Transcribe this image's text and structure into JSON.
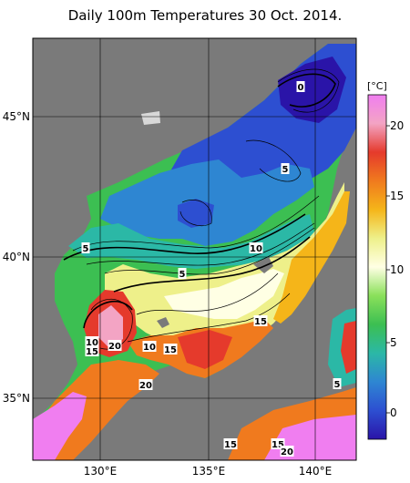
{
  "title": "Daily 100m Temperatures 30 Oct. 2014.",
  "lat_labels": [
    "45°N",
    "40°N",
    "35°N"
  ],
  "lon_labels": [
    "130°E",
    "135°E",
    "140°E"
  ],
  "colorbar": {
    "unit": "[°C]",
    "ticks": [
      "20",
      "15",
      "10",
      "5",
      "0"
    ],
    "stops": [
      "#f07ef0",
      "#f3a4c4",
      "#e53a2c",
      "#f07a1e",
      "#f5b519",
      "#eef08a",
      "#ffffe4",
      "#8ae05a",
      "#3cbf52",
      "#2bb8a6",
      "#2e86d2",
      "#2d4fd1",
      "#2a14a8"
    ]
  },
  "contour_labels": [
    "0",
    "5",
    "5",
    "5",
    "10",
    "15",
    "10",
    "20",
    "15",
    "10",
    "15",
    "20",
    "5",
    "15",
    "15",
    "20"
  ],
  "colors": {
    "land": "#7a7a7a",
    "background": "#ffffff",
    "coast": "#000000"
  }
}
